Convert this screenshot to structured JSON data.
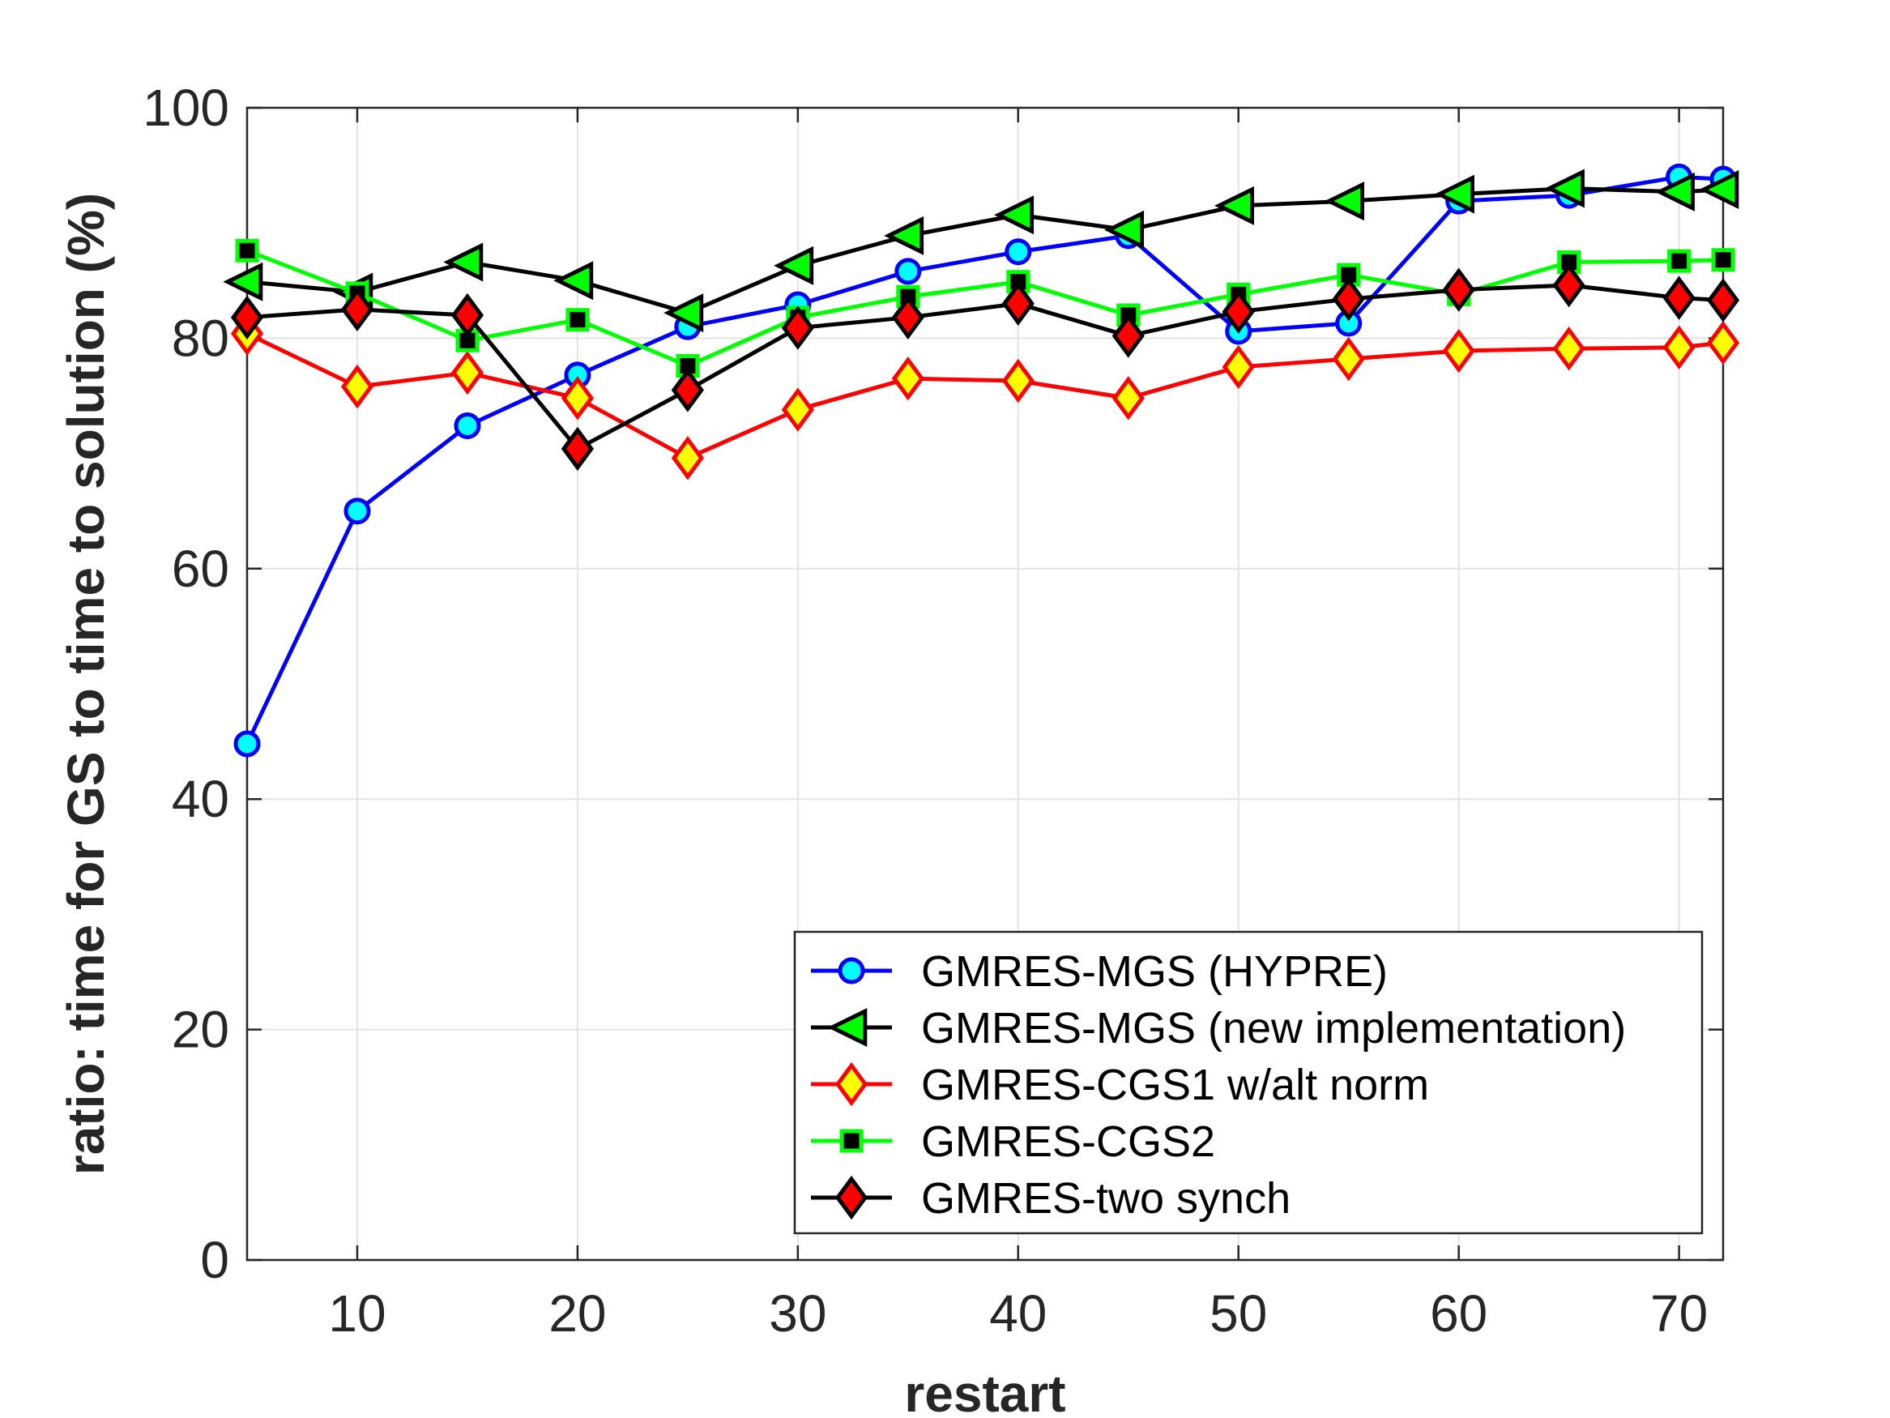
{
  "chart_data": {
    "type": "line",
    "title": "",
    "xlabel": "restart",
    "ylabel": "ratio: time for GS to time to solution (%)",
    "xlim": [
      5,
      72
    ],
    "ylim": [
      0,
      100
    ],
    "xticks": [
      10,
      20,
      30,
      40,
      50,
      60,
      70
    ],
    "yticks": [
      0,
      20,
      40,
      60,
      80,
      100
    ],
    "grid": true,
    "legend_position": "bottom-right",
    "x": [
      5,
      10,
      15,
      20,
      25,
      30,
      35,
      40,
      45,
      50,
      55,
      60,
      65,
      70,
      72
    ],
    "series": [
      {
        "name": "GMRES-MGS (HYPRE)",
        "values": [
          44.8,
          65.0,
          72.4,
          76.8,
          81.0,
          82.9,
          85.8,
          87.5,
          88.9,
          80.6,
          81.3,
          91.9,
          92.4,
          94.0,
          93.8
        ],
        "line_color": "#0000ff",
        "marker": "circle",
        "marker_face": "#00ffff",
        "marker_edge": "#0000ff"
      },
      {
        "name": "GMRES-MGS (new implementation)",
        "values": [
          84.9,
          84.0,
          86.6,
          85.0,
          82.2,
          86.3,
          88.9,
          90.7,
          89.4,
          91.5,
          91.9,
          92.5,
          93.0,
          92.7,
          92.9
        ],
        "line_color": "#000000",
        "marker": "triangle-left",
        "marker_face": "#00ff00",
        "marker_edge": "#000000"
      },
      {
        "name": "GMRES-CGS1 w/alt norm",
        "values": [
          80.4,
          75.8,
          77.0,
          74.8,
          69.6,
          73.8,
          76.5,
          76.3,
          74.8,
          77.5,
          78.2,
          78.9,
          79.1,
          79.2,
          79.6
        ],
        "line_color": "#ff0000",
        "marker": "diamond",
        "marker_face": "#ffff00",
        "marker_edge": "#ff0000"
      },
      {
        "name": "GMRES-CGS2",
        "values": [
          87.6,
          83.9,
          79.8,
          81.6,
          77.6,
          81.8,
          83.6,
          84.9,
          82.0,
          83.8,
          85.5,
          83.8,
          86.6,
          86.7,
          86.8
        ],
        "line_color": "#00ff00",
        "marker": "square",
        "marker_face": "#000000",
        "marker_edge": "#00ff00"
      },
      {
        "name": "GMRES-two synch",
        "values": [
          81.8,
          82.5,
          82.0,
          70.4,
          75.5,
          80.9,
          81.8,
          83.0,
          80.2,
          82.3,
          83.4,
          84.2,
          84.6,
          83.5,
          83.3
        ],
        "line_color": "#000000",
        "marker": "diamond",
        "marker_face": "#ff0000",
        "marker_edge": "#000000"
      }
    ]
  }
}
